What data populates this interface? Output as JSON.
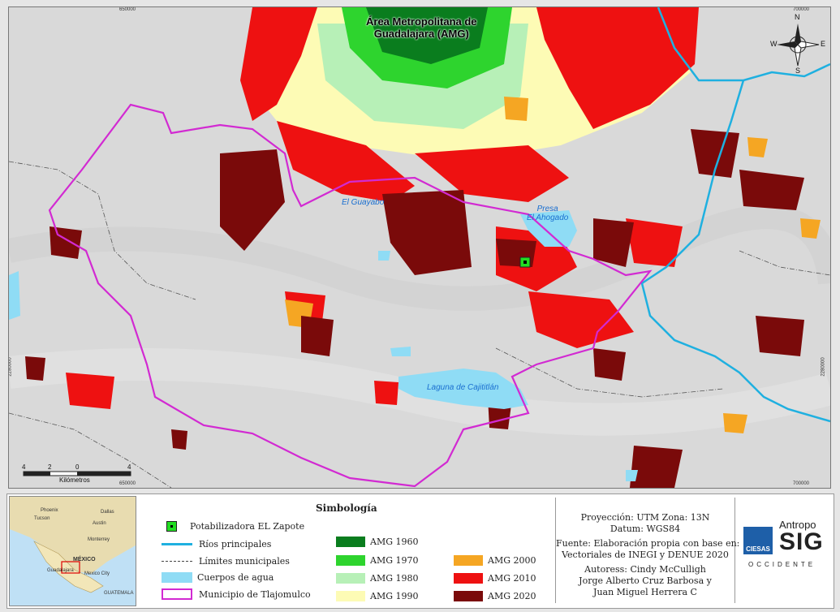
{
  "map": {
    "title_line1": "Área Metropolitana de",
    "title_line2": "Guadalajara (AMG)",
    "labels": {
      "guayabo": "El Guayabo",
      "presa1": "Presa",
      "presa2": "El Ahogado",
      "laguna": "Laguna de Cajititlán"
    },
    "ticks": {
      "top_left": "650000",
      "top_right": "700000",
      "bottom_left": "650000",
      "bottom_right": "700000",
      "left_y": "2280000",
      "right_y": "2280000"
    },
    "compass": {
      "n": "N",
      "s": "S",
      "e": "E",
      "w": "W"
    },
    "scale": {
      "l0": "4",
      "l1": "2",
      "l2": "0",
      "l3": "4",
      "unit": "Kilómetros"
    }
  },
  "inset": {
    "country": "MÉXICO",
    "labels": [
      "Phoenix",
      "Tucson",
      "Austin",
      "Dallas",
      "Monterrey",
      "Guadalajara",
      "Mexico City",
      "GUATEMALA"
    ]
  },
  "legend": {
    "title": "Simbología",
    "potabilizadora": "Potabilizadora EL Zapote",
    "rios": "Ríos principales",
    "limites": "Límites municipales",
    "cuerpos": "Cuerpos de agua",
    "municipio": "Municipio de Tlajomulco",
    "amg1960": "AMG 1960",
    "amg1970": "AMG 1970",
    "amg1980": "AMG  1980",
    "amg1990": "AMG  1990",
    "amg2000": "AMG 2000",
    "amg2010": "AMG 2010",
    "amg2020": "AMG 2020"
  },
  "colors": {
    "amg1960": "#0a7d1e",
    "amg1970": "#2ed42e",
    "amg1980": "#b7f0b7",
    "amg1990": "#fdfbb5",
    "amg2000": "#f5a623",
    "amg2010": "#ee1111",
    "amg2020": "#7a0a0a",
    "river": "#1fb0e0",
    "water": "#8fdcf5",
    "municipio": "#d22ad2"
  },
  "info": {
    "proyeccion": "Proyección: UTM Zona: 13N",
    "datum": "Datum: WGS84",
    "fuente1": "Fuente: Elaboración propia con base en:",
    "fuente2": "Vectoriales de INEGI y DENUE 2020",
    "autores": "Autoress: Cindy McCulligh",
    "autor2": "Jorge Alberto Cruz Barbosa y",
    "autor3": "Juan Miguel Herrera C"
  },
  "logo": {
    "antropo": "Antropo",
    "sig": "SIG",
    "ciesas": "CIESAS",
    "occidente": "OCCIDENTE"
  }
}
